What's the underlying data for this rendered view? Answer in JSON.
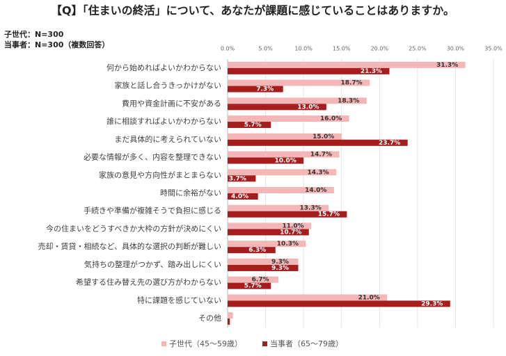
{
  "chart_data": {
    "type": "bar",
    "orientation": "horizontal",
    "title": "【Q】「住まいの終活」について、あなたが課題に感じていることはありますか。",
    "subtitles": [
      "子世代：N=300",
      "当事者：N=300（複数回答）"
    ],
    "categories": [
      "何から始めればよいかわからない",
      "家族と話し合うきっかけがない",
      "費用や資金計画に不安がある",
      "誰に相談すればよいかわからない",
      "まだ具体的に考えられていない",
      "必要な情報が多く、内容を整理できない",
      "家族の意見や方向性がまとまらない",
      "時間に余裕がない",
      "手続きや準備が複雑そうで負担に感じる",
      "今の住まいをどうすべきか大枠の方針が決めにくい",
      "売却・賃貸・相続など、具体的な選択の判断が難しい",
      "気持ちの整理がつかず、踏み出しにくい",
      "希望する住み替え先の選び方がわからない",
      "特に課題を感じていない",
      "その他"
    ],
    "series": [
      {
        "name": "子世代（45～59歳）",
        "color": "#f4b6b6",
        "values": [
          31.3,
          18.7,
          18.3,
          16.0,
          15.0,
          14.7,
          14.3,
          14.0,
          13.3,
          11.0,
          10.3,
          9.3,
          6.7,
          21.0,
          0.7
        ],
        "value_labels": [
          "31.3%",
          "18.7%",
          "18.3%",
          "16.0%",
          "15.0%",
          "14.7%",
          "14.3%",
          "14.0%",
          "13.3%",
          "11.0%",
          "10.3%",
          "9.3%",
          "6.7%",
          "21.0%",
          null
        ]
      },
      {
        "name": "当事者（65～79歳）",
        "color": "#a51d1d",
        "values": [
          21.3,
          7.3,
          13.0,
          5.7,
          23.7,
          10.0,
          3.7,
          4.0,
          15.7,
          10.7,
          6.3,
          9.3,
          5.7,
          29.3,
          0.3
        ],
        "value_labels": [
          "21.3%",
          "7.3%",
          "13.0%",
          "5.7%",
          "23.7%",
          "10.0%",
          "3.7%",
          "4.0%",
          "15.7%",
          "10.7%",
          "6.3%",
          "9.3%",
          "5.7%",
          "29.3%",
          null
        ]
      }
    ],
    "xlim": [
      0,
      35
    ],
    "xticks": [
      {
        "value": 0,
        "label": "0.0%"
      },
      {
        "value": 5,
        "label": "5.0%"
      },
      {
        "value": 10,
        "label": "10.0%"
      },
      {
        "value": 15,
        "label": "15.0%"
      },
      {
        "value": 20,
        "label": "20.0%"
      },
      {
        "value": 25,
        "label": "25.0%"
      },
      {
        "value": 30,
        "label": "30.0%"
      },
      {
        "value": 35,
        "label": "35.0%"
      }
    ],
    "grid": true,
    "legend": "bottom"
  }
}
